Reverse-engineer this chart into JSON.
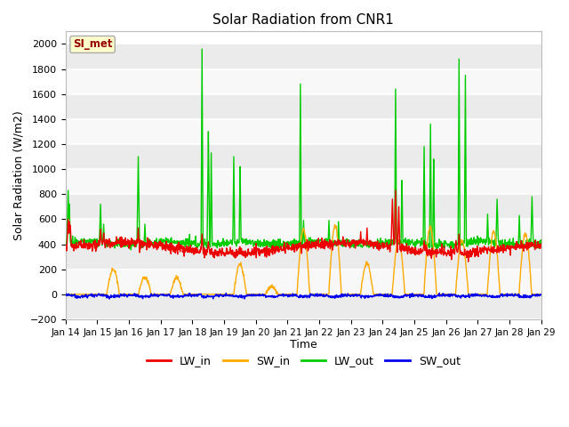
{
  "title": "Solar Radiation from CNR1",
  "xlabel": "Time",
  "ylabel": "Solar Radiation (W/m2)",
  "ylim": [
    -200,
    2100
  ],
  "yticks": [
    -200,
    0,
    200,
    400,
    600,
    800,
    1000,
    1200,
    1400,
    1600,
    1800,
    2000
  ],
  "plot_bg_color": "#ffffff",
  "fig_bg_color": "#ffffff",
  "grid_color": "#e0e0e0",
  "band_colors": [
    "#f0f0f0",
    "#e0e0e0"
  ],
  "legend_label": "SI_met",
  "legend_box_color": "#ffffcc",
  "legend_box_edge": "#aaaaaa",
  "line_colors": {
    "LW_in": "#ee0000",
    "SW_in": "#ffaa00",
    "LW_out": "#00cc00",
    "SW_out": "#0000ee"
  },
  "line_width": 1.0,
  "x_labels": [
    "Jan 14",
    "Jan 15",
    "Jan 16",
    "Jan 17",
    "Jan 18",
    "Jan 19",
    "Jan 20",
    "Jan 21",
    "Jan 22",
    "Jan 23",
    "Jan 24",
    "Jan 25",
    "Jan 26",
    "Jan 27",
    "Jan 28",
    "Jan 29"
  ],
  "x_ticks_pos": [
    0,
    1,
    2,
    3,
    4,
    5,
    6,
    7,
    8,
    9,
    10,
    11,
    12,
    13,
    14,
    15
  ]
}
